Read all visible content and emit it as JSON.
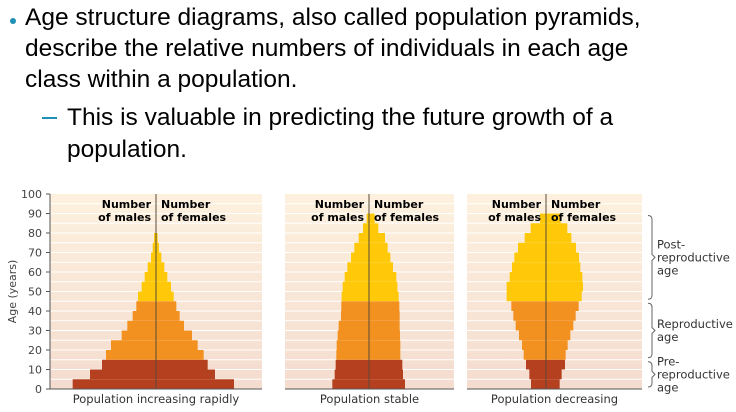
{
  "bullet": {
    "lines": [
      "Age structure diagrams, also called population pyramids,",
      "describe the relative numbers of individuals in each age",
      "class within a population."
    ],
    "sub_lines": [
      "This is valuable in predicting the future growth of a",
      "population."
    ]
  },
  "colors": {
    "pre": "#B5401F",
    "repro": "#F39120",
    "post": "#FFC90A",
    "bullet": "#1F8FB5"
  },
  "chart_data": {
    "type": "bar",
    "ylabel": "Age (years)",
    "ylim": [
      0,
      100
    ],
    "yticks": [
      "0",
      "10",
      "20",
      "30",
      "40",
      "50",
      "60",
      "70",
      "80",
      "90",
      "100"
    ],
    "age_bin_years": 5,
    "header_left": [
      "Number",
      "of males"
    ],
    "header_right": [
      "Number",
      "of females"
    ],
    "groups": [
      {
        "label": "Post-reproductive age",
        "lines": [
          "Post-",
          "reproductive",
          "age"
        ],
        "range": [
          45,
          90
        ]
      },
      {
        "label": "Reproductive age",
        "lines": [
          "Reproductive",
          "age"
        ],
        "range": [
          15,
          45
        ]
      },
      {
        "label": "Pre-reproductive age",
        "lines": [
          "Pre-",
          "reproductive",
          "age"
        ],
        "range": [
          0,
          15
        ]
      }
    ],
    "panels": [
      {
        "title": "Population increasing rapidly",
        "males": [
          250,
          198,
          162,
          150,
          135,
          103,
          86,
          70,
          59,
          54,
          43,
          34,
          25,
          15,
          10,
          6
        ],
        "females": [
          234,
          177,
          155,
          143,
          125,
          108,
          84,
          71,
          61,
          53,
          45,
          34,
          25,
          16,
          9,
          5
        ]
      },
      {
        "title": "Population stable",
        "males": [
          110,
          103,
          100,
          98,
          97,
          94,
          91,
          84,
          83,
          82,
          79,
          73,
          65,
          54,
          44,
          31,
          18,
          7
        ],
        "females": [
          108,
          102,
          100,
          94,
          94,
          93,
          92,
          92,
          91,
          89,
          85,
          82,
          72,
          64,
          56,
          48,
          28,
          17
        ]
      },
      {
        "title": "Population decreasing",
        "males": [
          45,
          50,
          60,
          67,
          72,
          81,
          91,
          98,
          104,
          118,
          118,
          109,
          102,
          95,
          84,
          64,
          46,
          18
        ],
        "females": [
          41,
          47,
          57,
          59,
          65,
          73,
          82,
          89,
          98,
          107,
          111,
          109,
          103,
          99,
          90,
          76,
          64,
          44
        ]
      }
    ]
  }
}
